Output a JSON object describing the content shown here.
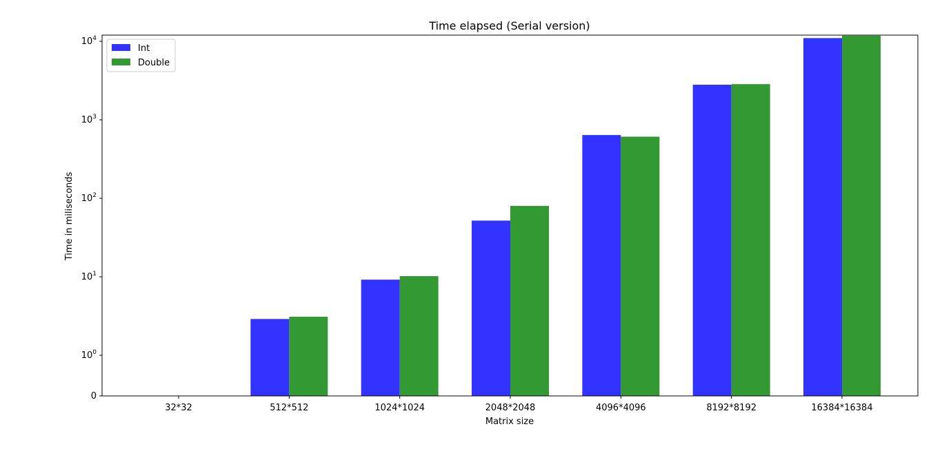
{
  "chart_data": {
    "type": "bar",
    "title": "Time elapsed (Serial version)",
    "xlabel": "Matrix size",
    "ylabel": "Time in miliseconds",
    "yscale": "symlog",
    "ylim": [
      0,
      12000
    ],
    "categories": [
      "32*32",
      "512*512",
      "1024*1024",
      "2048*2048",
      "4096*4096",
      "8192*8192",
      "16384*16384"
    ],
    "series": [
      {
        "name": "Int",
        "color": "#3333ff",
        "values": [
          0,
          2.9,
          9.2,
          52,
          640,
          2800,
          11000
        ]
      },
      {
        "name": "Double",
        "color": "#339933",
        "values": [
          0,
          3.1,
          10.2,
          80,
          610,
          2850,
          11800
        ]
      }
    ],
    "yticks": [
      {
        "value": 0,
        "base": "0",
        "exp": ""
      },
      {
        "value": 1,
        "base": "10",
        "exp": "0"
      },
      {
        "value": 10,
        "base": "10",
        "exp": "1"
      },
      {
        "value": 100,
        "base": "10",
        "exp": "2"
      },
      {
        "value": 1000,
        "base": "10",
        "exp": "3"
      },
      {
        "value": 10000,
        "base": "10",
        "exp": "4"
      }
    ],
    "legend_position": "top-left",
    "grid": false
  }
}
